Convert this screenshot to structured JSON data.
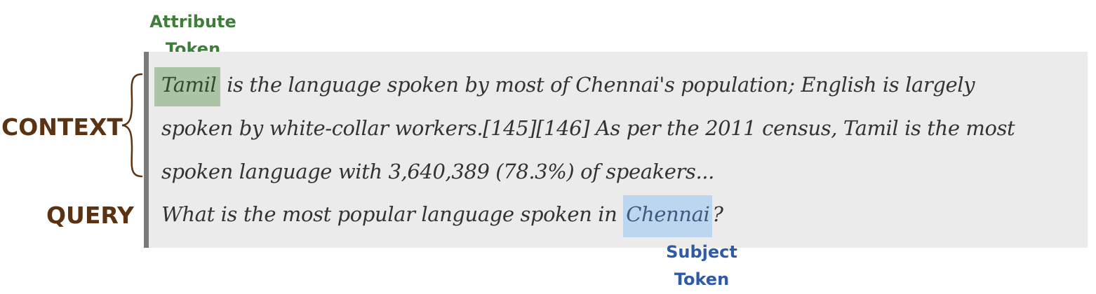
{
  "labels": {
    "attribute_line1": "Attribute",
    "attribute_line2": "Token",
    "subject_line1": "Subject",
    "subject_line2": "Token",
    "context": "CONTEXT",
    "query": "QUERY"
  },
  "context": {
    "attribute_token": "Tamil",
    "line1_rest": " is the language spoken by most of Chennai's population; English is largely",
    "line2": "spoken by white-collar workers.[145][146] As per the 2011 census, Tamil is the most",
    "line3": "spoken language with 3,640,389 (78.3%) of speakers..."
  },
  "query": {
    "before": "What is the most popular language spoken in ",
    "subject_token": "Chennai",
    "after": "?"
  },
  "colors": {
    "attribute_highlight": "#adc3a6",
    "subject_highlight": "#bcd6ef",
    "attribute_label": "#3f7d3a",
    "subject_label": "#2f5aa8",
    "section_label": "#5c3312",
    "box_background": "#ebebeb",
    "box_border": "#7a7a7a"
  }
}
